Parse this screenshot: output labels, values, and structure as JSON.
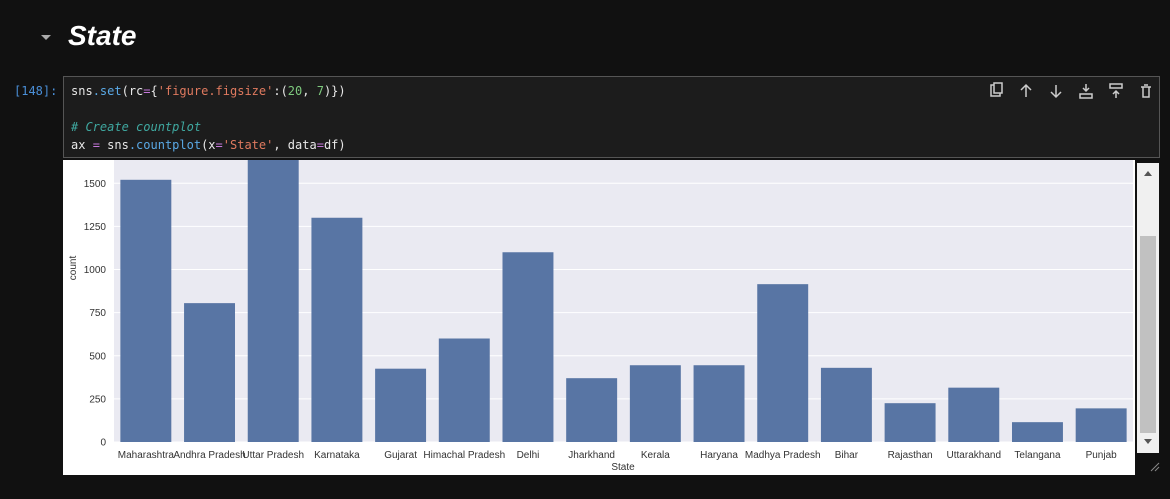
{
  "heading": {
    "title": "State"
  },
  "cell": {
    "prompt": "[148]:",
    "code": [
      "sns.set(rc={'figure.figsize':(20, 7)})",
      "",
      "# Create countplot",
      "ax = sns.countplot(x='State', data=df)"
    ]
  },
  "chart_data": {
    "type": "bar",
    "categories": [
      "Maharashtra",
      "Andhra Pradesh",
      "Uttar Pradesh",
      "Karnataka",
      "Gujarat",
      "Himachal Pradesh",
      "Delhi",
      "Jharkhand",
      "Kerala",
      "Haryana",
      "Madhya Pradesh",
      "Bihar",
      "Rajasthan",
      "Uttarakhand",
      "Telangana",
      "Punjab"
    ],
    "values": [
      1520,
      805,
      1700,
      1300,
      425,
      600,
      1100,
      370,
      445,
      445,
      915,
      430,
      225,
      315,
      115,
      195
    ],
    "color": "#5875a4",
    "x_label": "State",
    "y_label": "count",
    "ylim": [
      0,
      1600
    ],
    "yticks": [
      0,
      250,
      500,
      750,
      1000,
      1250,
      1500
    ],
    "grid": true
  }
}
